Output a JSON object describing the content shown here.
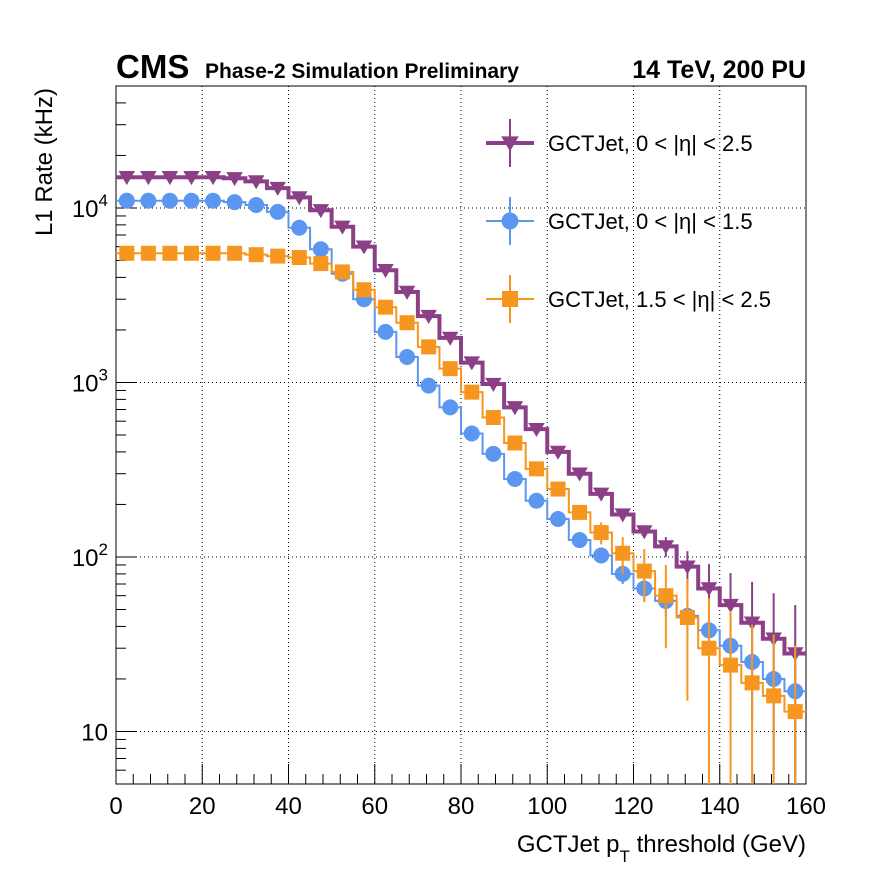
{
  "header": {
    "experiment": "CMS",
    "subtitle": "Phase-2 Simulation Preliminary",
    "conditions": "14 TeV, 200 PU"
  },
  "chart_data": {
    "type": "line",
    "xlabel_main": "GCTJet p",
    "xlabel_sub": "T",
    "xlabel_rest": " threshold (GeV)",
    "ylabel": "L1 Rate (kHz)",
    "xlim": [
      0,
      160
    ],
    "ylim": [
      5,
      50000
    ],
    "yscale": "log",
    "grid": true,
    "legend_position": "top-right",
    "x_ticks": [
      "0",
      "20",
      "40",
      "60",
      "80",
      "100",
      "120",
      "140",
      "160"
    ],
    "y_ticks": [
      {
        "base": "10",
        "exp": "4",
        "value": 10000
      },
      {
        "base": "10",
        "exp": "3",
        "value": 1000
      },
      {
        "base": "10",
        "exp": "2",
        "value": 100
      },
      {
        "base": "10",
        "exp": "",
        "value": 10
      }
    ],
    "x": [
      2.5,
      7.5,
      12.5,
      17.5,
      22.5,
      27.5,
      32.5,
      37.5,
      42.5,
      47.5,
      52.5,
      57.5,
      62.5,
      67.5,
      72.5,
      77.5,
      82.5,
      87.5,
      92.5,
      97.5,
      102.5,
      107.5,
      112.5,
      117.5,
      122.5,
      127.5,
      132.5,
      137.5,
      142.5,
      147.5,
      152.5,
      157.5
    ],
    "series": [
      {
        "name": "GCTJet, 0 < |η| < 2.5",
        "color": "#8b3f87",
        "marker": "triangle-down",
        "values": [
          15000,
          15000,
          15000,
          15000,
          15000,
          14800,
          14200,
          13000,
          11500,
          9700,
          7800,
          6000,
          4400,
          3300,
          2400,
          1800,
          1300,
          980,
          720,
          540,
          400,
          300,
          230,
          175,
          140,
          115,
          88,
          66,
          53,
          42,
          34,
          28
        ],
        "errors": [
          0,
          0,
          0,
          0,
          0,
          0,
          0,
          0,
          0,
          0,
          0,
          0,
          0,
          0,
          0,
          0,
          0,
          0,
          0,
          0,
          0,
          0,
          0,
          0,
          0,
          15,
          20,
          25,
          28,
          30,
          28,
          25
        ]
      },
      {
        "name": "GCTJet, 0 < |η| < 1.5",
        "color": "#5b96f0",
        "marker": "circle",
        "values": [
          11000,
          11000,
          11000,
          11000,
          11000,
          10800,
          10400,
          9500,
          7700,
          5800,
          4200,
          3000,
          1950,
          1400,
          960,
          720,
          510,
          390,
          280,
          210,
          165,
          125,
          102,
          80,
          66,
          56,
          46,
          38,
          31,
          25,
          20,
          17
        ],
        "errors": [
          0,
          0,
          0,
          0,
          0,
          0,
          0,
          0,
          0,
          0,
          0,
          0,
          0,
          0,
          0,
          0,
          0,
          0,
          0,
          0,
          0,
          0,
          8,
          10,
          10,
          10,
          10,
          12,
          14,
          14,
          14,
          14
        ]
      },
      {
        "name": "GCTJet, 1.5 < |η| < 2.5",
        "color": "#f7961e",
        "marker": "square",
        "values": [
          5500,
          5500,
          5500,
          5500,
          5500,
          5500,
          5400,
          5300,
          5200,
          4800,
          4300,
          3400,
          2700,
          2200,
          1600,
          1200,
          880,
          630,
          450,
          320,
          245,
          180,
          138,
          105,
          83,
          60,
          45,
          30,
          24,
          19,
          16,
          13
        ],
        "errors": [
          0,
          0,
          0,
          0,
          0,
          0,
          0,
          0,
          0,
          0,
          0,
          0,
          0,
          0,
          0,
          0,
          0,
          0,
          0,
          0,
          0,
          0,
          20,
          25,
          28,
          30,
          30,
          28,
          25,
          22,
          20,
          18
        ]
      }
    ]
  }
}
